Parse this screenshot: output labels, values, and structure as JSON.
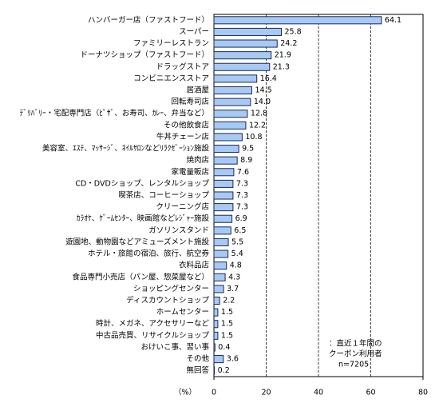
{
  "chart_data": {
    "type": "barh",
    "categories": [
      "ハンバーガー店（ファストフード）",
      "スーパー",
      "ファミリーレストラン",
      "ドーナツショップ（ファストフード）",
      "ドラッグストア",
      "コンビニエンスストア",
      "居酒屋",
      "回転寿司店",
      "ﾃﾞﾘﾊﾞﾘｰ・宅配専門店（ﾋﾟｻﾞ、お寿司、ｶﾚｰ、弁当など）",
      "その他飲食店",
      "牛丼チェーン店",
      "美容室、ｴｽﾃ、ﾏｯｻｰｼﾞ、ﾈｲﾙｻﾛﾝなどﾘﾗｸｾﾞｰｼｮﾝ施設",
      "焼肉店",
      "家電量販店",
      "CD・DVDショップ、レンタルショップ",
      "喫茶店、コーヒーショップ",
      "クリーニング店",
      "ｶﾗｵｹ、ｹﾞｰﾑｾﾝﾀｰ、映画館などﾚｼﾞｬｰ施設",
      "ガソリンスタンド",
      "遊園地、動物園などアミューズメント施設",
      "ホテル・旅館の宿泊、旅行、航空券",
      "衣料品店",
      "食品専門小売店（パン屋、惣菜屋など）",
      "ショッピングセンター",
      "ディスカウントショップ",
      "ホームセンター",
      "時計、メガネ、アクセサリーなど",
      "中古品売買、リサイクルショップ",
      "おけいこ事、習い事",
      "その他",
      "無回答"
    ],
    "values": [
      64.1,
      25.8,
      24.2,
      21.9,
      21.3,
      16.4,
      14.5,
      14.0,
      12.8,
      12.2,
      10.8,
      9.5,
      8.9,
      7.6,
      7.3,
      7.3,
      7.3,
      6.9,
      6.5,
      5.5,
      5.4,
      4.8,
      4.3,
      3.7,
      2.2,
      1.5,
      1.5,
      1.5,
      0.4,
      3.6,
      0.2
    ],
    "value_labels": [
      "64.1",
      "25.8",
      "24.2",
      "21.9",
      "21.3",
      "16.4",
      "14.5",
      "14.0",
      "12.8",
      "12.2",
      "10.8",
      "9.5",
      "8.9",
      "7.6",
      "7.3",
      "7.3",
      "7.3",
      "6.9",
      "6.5",
      "5.5",
      "5.4",
      "4.8",
      "4.3",
      "3.7",
      "2.2",
      "1.5",
      "1.5",
      "1.5",
      "0.4",
      "3.6",
      "0.2"
    ],
    "color": "#a9c9f5",
    "xlim": [
      0,
      80
    ],
    "xticks": [
      0,
      20,
      40,
      60,
      80
    ],
    "grid": true,
    "x_label": "（%）",
    "notes": [
      "：直近１年間の",
      "クーポン利用者",
      "n=7205"
    ]
  }
}
